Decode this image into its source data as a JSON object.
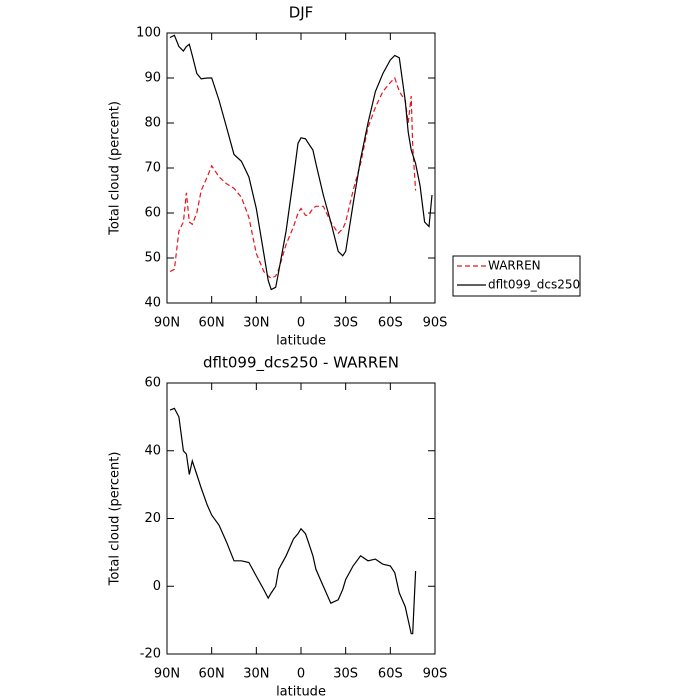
{
  "chart_data": [
    {
      "type": "line",
      "title": "DJF",
      "xlabel": "latitude",
      "ylabel": "Total cloud (percent)",
      "x": [
        88,
        85,
        82,
        79,
        77,
        75,
        73,
        70,
        67,
        63,
        60,
        55,
        50,
        45,
        40,
        35,
        30,
        25,
        22,
        20,
        17,
        15,
        10,
        5,
        2,
        0,
        -3,
        -5,
        -8,
        -10,
        -15,
        -20,
        -25,
        -28,
        -30,
        -35,
        -40,
        -45,
        -50,
        -55,
        -60,
        -63,
        -66,
        -70,
        -72,
        -74,
        -75,
        -77,
        -80,
        -83,
        -86,
        -88
      ],
      "series": [
        {
          "name": "WARREN",
          "color": "#e8141c",
          "style": "dashed",
          "values": [
            47,
            47.5,
            56,
            58,
            64.5,
            58,
            57.5,
            60,
            65,
            68,
            70.5,
            68,
            66.5,
            65.5,
            63.5,
            59,
            51,
            47,
            46,
            45.5,
            46,
            47.5,
            53,
            57,
            60,
            61,
            59.5,
            59.5,
            61,
            61.5,
            61.5,
            58,
            55.5,
            56.5,
            58,
            65,
            71,
            79,
            83.5,
            87,
            89,
            90,
            87,
            85,
            80,
            86,
            75,
            65,
            null,
            null,
            null,
            null
          ]
        },
        {
          "name": "dflt099_dcs250",
          "color": "#000000",
          "style": "solid",
          "values": [
            99,
            99.5,
            97,
            96,
            97,
            97.5,
            95,
            91,
            89.8,
            90,
            90,
            85,
            79,
            73,
            71.5,
            68,
            61,
            51,
            45,
            43,
            43.5,
            47,
            56,
            68,
            75.5,
            76.7,
            76.5,
            75.5,
            74,
            71,
            64,
            58,
            51.5,
            50.5,
            51.5,
            62,
            72,
            80,
            87,
            91,
            94,
            95,
            94.5,
            85,
            78,
            74,
            73,
            71,
            66,
            58,
            57,
            64
          ]
        }
      ],
      "xlim": [
        90,
        -90
      ],
      "xticks": [
        {
          "value": 90,
          "label": "90N"
        },
        {
          "value": 60,
          "label": "60N"
        },
        {
          "value": 30,
          "label": "30N"
        },
        0,
        {
          "value": -30,
          "label": "30S"
        },
        {
          "value": -60,
          "label": "60S"
        },
        {
          "value": -90,
          "label": "90S"
        }
      ],
      "ylim": [
        40,
        100
      ],
      "yticks": [
        40,
        50,
        60,
        70,
        80,
        90,
        100
      ],
      "legend": "right"
    },
    {
      "type": "line",
      "title": "dflt099_dcs250 - WARREN",
      "xlabel": "latitude",
      "ylabel": "Total cloud (percent)",
      "x": [
        88,
        85,
        82,
        79,
        77,
        75,
        73,
        70,
        67,
        63,
        60,
        55,
        50,
        45,
        40,
        35,
        30,
        25,
        22,
        20,
        17,
        15,
        10,
        5,
        2,
        0,
        -3,
        -5,
        -8,
        -10,
        -15,
        -20,
        -25,
        -28,
        -30,
        -35,
        -40,
        -45,
        -50,
        -55,
        -60,
        -63,
        -66,
        -70,
        -72,
        -74,
        -75,
        -77
      ],
      "series": [
        {
          "color": "#000000",
          "style": "solid",
          "values": [
            52,
            52.5,
            50,
            40,
            39,
            33,
            37,
            33,
            29,
            24,
            21,
            18,
            13,
            7.5,
            7.5,
            7,
            3,
            -1,
            -3.5,
            -2,
            0,
            5,
            9,
            14,
            15.5,
            17,
            15.5,
            13,
            9,
            5,
            0,
            -5,
            -4,
            -1,
            2,
            6,
            9,
            7.5,
            8,
            6.5,
            6,
            4,
            -2,
            -6,
            -10,
            -14,
            -14,
            4.5
          ]
        }
      ],
      "xlim": [
        90,
        -90
      ],
      "xticks": [
        {
          "value": 90,
          "label": "90N"
        },
        {
          "value": 60,
          "label": "60N"
        },
        {
          "value": 30,
          "label": "30N"
        },
        0,
        {
          "value": -30,
          "label": "30S"
        },
        {
          "value": -60,
          "label": "60S"
        },
        {
          "value": -90,
          "label": "90S"
        }
      ],
      "ylim": [
        -20,
        60
      ],
      "yticks": [
        -20,
        0,
        20,
        40,
        60
      ]
    }
  ]
}
